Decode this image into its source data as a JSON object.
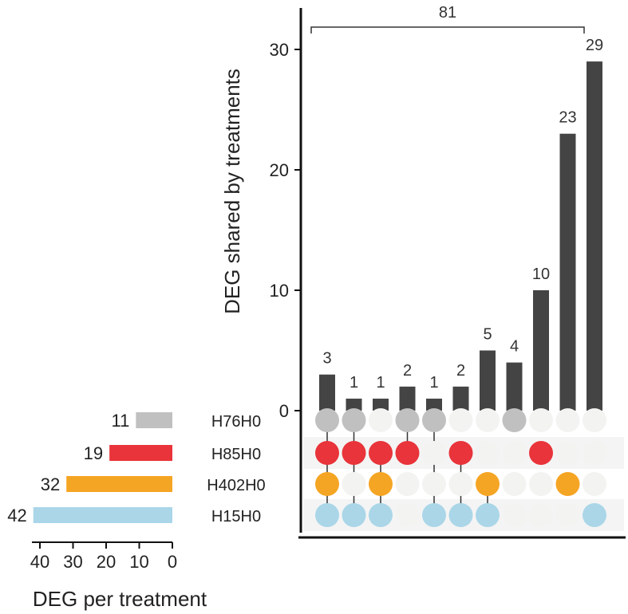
{
  "chart_data": {
    "type": "upset",
    "ylabel": "DEG shared by treatments",
    "xlabel_sets": "DEG per treatment",
    "ylim": [
      0,
      33
    ],
    "yticks": [
      0,
      10,
      20,
      30
    ],
    "set_size_ticks": [
      40,
      30,
      20,
      10,
      0
    ],
    "sets": [
      {
        "name": "H76H0",
        "size": 11,
        "color": "#c0c0c0"
      },
      {
        "name": "H85H0",
        "size": 19,
        "color": "#e8343a"
      },
      {
        "name": "H402H0",
        "size": 32,
        "color": "#f5a524"
      },
      {
        "name": "H15H0",
        "size": 42,
        "color": "#aad6e8"
      }
    ],
    "intersections": [
      {
        "value": 3,
        "sets": [
          "H76H0",
          "H85H0",
          "H402H0",
          "H15H0"
        ]
      },
      {
        "value": 1,
        "sets": [
          "H76H0",
          "H85H0",
          "H15H0"
        ]
      },
      {
        "value": 1,
        "sets": [
          "H85H0",
          "H402H0",
          "H15H0"
        ]
      },
      {
        "value": 2,
        "sets": [
          "H76H0",
          "H85H0"
        ]
      },
      {
        "value": 1,
        "sets": [
          "H76H0",
          "H15H0"
        ]
      },
      {
        "value": 2,
        "sets": [
          "H85H0",
          "H15H0"
        ]
      },
      {
        "value": 5,
        "sets": [
          "H402H0",
          "H15H0"
        ]
      },
      {
        "value": 4,
        "sets": [
          "H76H0"
        ]
      },
      {
        "value": 10,
        "sets": [
          "H85H0"
        ]
      },
      {
        "value": 23,
        "sets": [
          "H402H0"
        ]
      },
      {
        "value": 29,
        "sets": [
          "H15H0"
        ]
      }
    ],
    "bracket_label": "81",
    "bracket_span": [
      0,
      10
    ],
    "bar_color": "#444444",
    "empty_dot_color": "#f3f3f1"
  }
}
